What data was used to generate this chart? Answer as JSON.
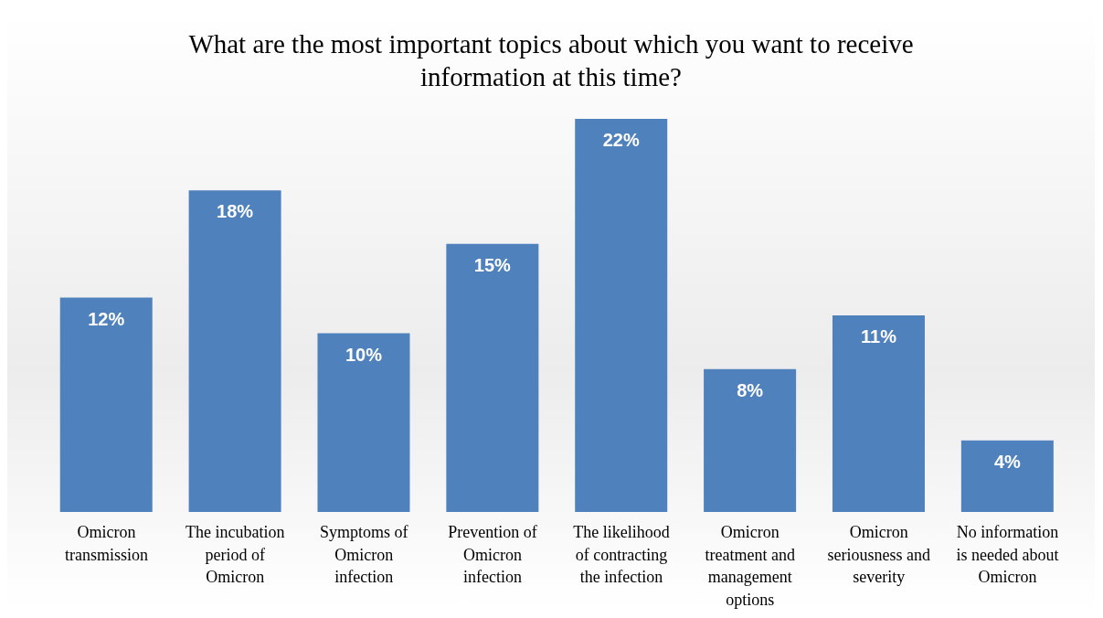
{
  "chart_data": {
    "type": "bar",
    "title": "What are the most important topics about which you want to receive information at this time?",
    "categories": [
      "Omicron transmission",
      "The incubation period of Omicron",
      "Symptoms of Omicron infection",
      "Prevention of Omicron infection",
      "The likelihood of contracting the infection",
      "Omicron treatment and management options",
      "Omicron seriousness and severity",
      "No information is needed about Omicron"
    ],
    "values": [
      12,
      18,
      10,
      15,
      22,
      8,
      11,
      4
    ],
    "value_labels": [
      "12%",
      "18%",
      "10%",
      "15%",
      "22%",
      "8%",
      "11%",
      "4%"
    ],
    "color": "#4f81bd"
  }
}
